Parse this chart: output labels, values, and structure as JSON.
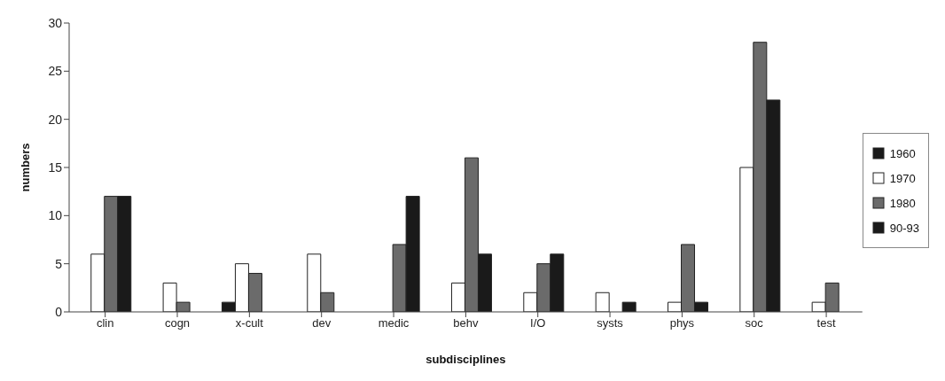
{
  "chart_data": {
    "type": "bar",
    "xlabel": "subdisciplines",
    "ylabel": "numbers",
    "categories": [
      "clin",
      "cogn",
      "x-cult",
      "dev",
      "medic",
      "behv",
      "I/O",
      "systs",
      "phys",
      "soc",
      "test"
    ],
    "series": [
      {
        "name": "1960",
        "color": "#1a1a1a",
        "values": [
          0,
          0,
          1,
          0,
          0,
          0,
          0,
          0,
          0,
          0,
          0
        ]
      },
      {
        "name": "1970",
        "color": "#ffffff",
        "values": [
          6,
          3,
          5,
          6,
          0,
          3,
          2,
          2,
          1,
          15,
          1
        ]
      },
      {
        "name": "1980",
        "color": "#6b6b6b",
        "values": [
          12,
          1,
          4,
          2,
          7,
          16,
          5,
          0,
          7,
          28,
          3
        ]
      },
      {
        "name": "90-93",
        "color": "#1a1a1a",
        "values": [
          12,
          0,
          0,
          0,
          12,
          6,
          6,
          1,
          1,
          22,
          0
        ]
      }
    ],
    "ylim": [
      0,
      30
    ],
    "yticks": [
      0,
      5,
      10,
      15,
      20,
      25,
      30
    ],
    "grid": false,
    "legend": "right"
  }
}
